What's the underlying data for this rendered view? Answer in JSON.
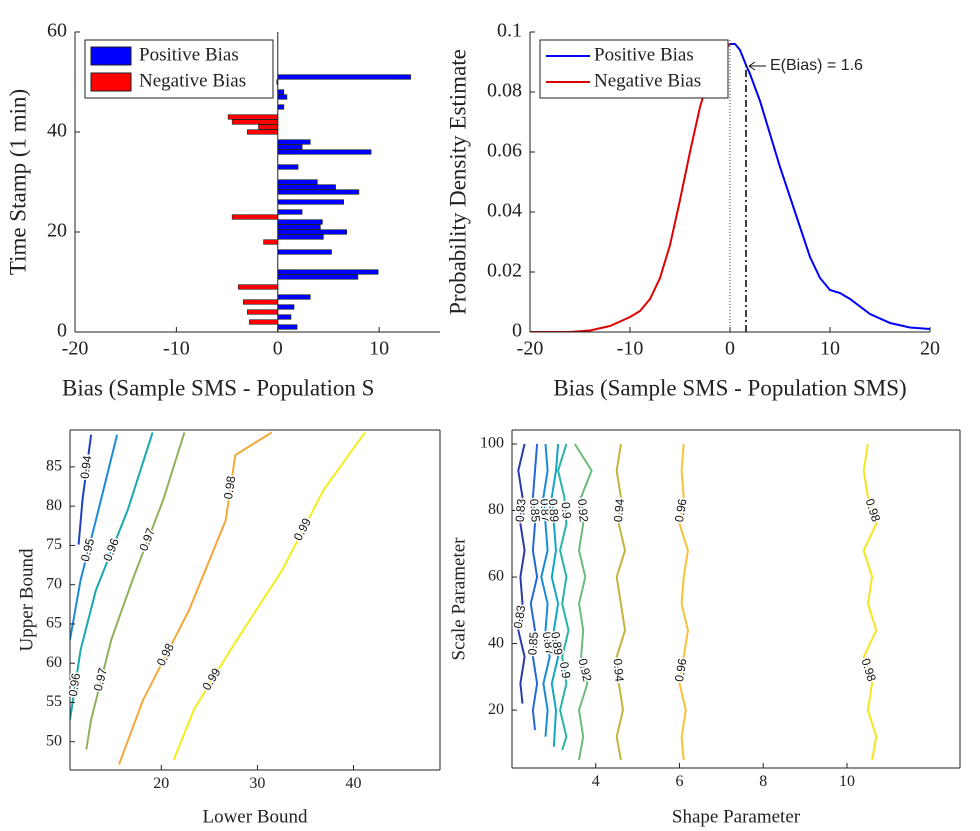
{
  "chart_data": [
    {
      "type": "barh",
      "xlabel": "Bias (Sample SMS - Population S",
      "ylabel": "Time Stamp (1 min)",
      "xlim": [
        -20,
        16
      ],
      "xticks": [
        -20,
        -10,
        0,
        10
      ],
      "ylim": [
        0,
        60
      ],
      "yticks": [
        0,
        20,
        40,
        60
      ],
      "legend": "upper left",
      "series": [
        {
          "name": "Positive Bias",
          "color": "#0000ff",
          "y": [
            1,
            3,
            5,
            7,
            11,
            12,
            16,
            19,
            20,
            21,
            22,
            24,
            26,
            28,
            29,
            30,
            33,
            36,
            37,
            38,
            45,
            47,
            48,
            51
          ],
          "values": [
            1.9,
            1.3,
            1.6,
            3.2,
            7.9,
            9.9,
            5.3,
            4.5,
            6.8,
            4.2,
            4.4,
            2.4,
            6.5,
            8.0,
            5.7,
            3.9,
            2.0,
            9.2,
            2.4,
            3.2,
            0.6,
            0.9,
            0.6,
            13.1
          ]
        },
        {
          "name": "Negative Bias",
          "color": "#ff0000",
          "y": [
            2,
            4,
            6,
            9,
            18,
            23,
            40,
            41,
            42,
            43,
            50
          ],
          "values": [
            -2.8,
            -3.0,
            -3.4,
            -3.9,
            -1.4,
            -4.5,
            -3.0,
            -1.9,
            -4.5,
            -4.9,
            -0.1
          ]
        }
      ]
    },
    {
      "type": "line",
      "xlabel": "Bias (Sample SMS - Population SMS)",
      "ylabel": "Probability Density Estimate",
      "xlim": [
        -20,
        20
      ],
      "xticks": [
        -20,
        -10,
        0,
        10,
        20
      ],
      "ylim": [
        0,
        0.1
      ],
      "yticks": [
        0,
        0.02,
        0.04,
        0.06,
        0.08,
        0.1
      ],
      "legend": "upper left",
      "zero_line": 0,
      "mean_line": 1.6,
      "annotation": "E(Bias) = 1.6",
      "series": [
        {
          "name": "Positive Bias",
          "color": "#0000ff",
          "x": [
            0,
            0.5,
            1,
            1.6,
            2,
            3,
            4,
            5,
            6,
            7,
            8,
            9,
            10,
            11,
            12,
            14,
            16,
            18,
            20
          ],
          "values": [
            0.096,
            0.096,
            0.094,
            0.089,
            0.086,
            0.077,
            0.066,
            0.055,
            0.045,
            0.035,
            0.025,
            0.018,
            0.014,
            0.013,
            0.011,
            0.006,
            0.003,
            0.0015,
            0.001
          ]
        },
        {
          "name": "Negative Bias",
          "color": "#e00000",
          "x": [
            -20,
            -18,
            -16,
            -14,
            -12,
            -10,
            -9,
            -8,
            -7,
            -6,
            -5,
            -4,
            -3,
            -2,
            -1,
            0
          ],
          "values": [
            0,
            0,
            0,
            0.0005,
            0.002,
            0.005,
            0.007,
            0.011,
            0.018,
            0.029,
            0.044,
            0.06,
            0.075,
            0.086,
            0.093,
            0.096
          ]
        }
      ]
    },
    {
      "type": "contour",
      "xlabel": "Lower Bound",
      "ylabel": "Upper Bound",
      "xlim": [
        10.5,
        49
      ],
      "xticks": [
        20,
        30,
        40
      ],
      "ylim": [
        46.4,
        89.7
      ],
      "yticks": [
        50,
        55,
        60,
        65,
        70,
        75,
        80,
        85
      ],
      "contours": [
        {
          "name": 0.94,
          "color": "#2040c0",
          "x": [
            12.7,
            11.8,
            11.4
          ],
          "y": [
            89.1,
            80.8,
            75.1
          ]
        },
        {
          "name": 0.95,
          "color": "#1a8ad6",
          "x": [
            15.4,
            13.2,
            11.6,
            10.5
          ],
          "y": [
            89.1,
            78.2,
            70.6,
            63.0
          ]
        },
        {
          "name": 0.96,
          "color": "#17a8b0",
          "x": [
            19.1,
            16.5,
            13.2,
            11.6,
            10.5
          ],
          "y": [
            89.4,
            79.5,
            69.3,
            61.7,
            52.8
          ]
        },
        {
          "name": 0.97,
          "color": "#8fb25a",
          "x": [
            22.4,
            20.2,
            17.0,
            14.8,
            12.7,
            12.2
          ],
          "y": [
            89.4,
            80.8,
            70.6,
            63.0,
            52.8,
            49.0
          ]
        },
        {
          "name": 0.98,
          "color": "#f2a93a",
          "x": [
            31.5,
            27.7,
            26.7,
            22.9,
            18.1,
            15.6
          ],
          "y": [
            89.4,
            86.5,
            78.2,
            66.8,
            55.3,
            47.1
          ]
        },
        {
          "name": 0.99,
          "color": "#f4ee1c",
          "x": [
            41.2,
            36.9,
            32.6,
            27.2,
            23.4,
            21.3
          ],
          "y": [
            89.4,
            82.1,
            71.9,
            61.7,
            54.1,
            47.7
          ]
        }
      ]
    },
    {
      "type": "contour",
      "xlabel": "Shape Parameter",
      "ylabel": "Scale Parameter",
      "xlim": [
        2,
        12.7
      ],
      "xticks": [
        4,
        6,
        8,
        10
      ],
      "ylim": [
        2.6,
        104.2
      ],
      "yticks": [
        20,
        40,
        60,
        80,
        100
      ],
      "contours": [
        {
          "name": 0.83,
          "color": "#2a3aa8",
          "x": [
            2.25,
            2.2,
            2.3,
            2.15,
            2.25,
            2.2,
            2.3,
            2.2,
            2.25,
            2.15,
            2.3
          ],
          "y": [
            22,
            28,
            36,
            44,
            52,
            60,
            68,
            76,
            84,
            92,
            100
          ]
        },
        {
          "name": 0.85,
          "color": "#2268d8",
          "x": [
            2.55,
            2.5,
            2.6,
            2.5,
            2.55,
            2.45,
            2.6,
            2.5,
            2.55,
            2.5,
            2.55,
            2.6
          ],
          "y": [
            14,
            20,
            28,
            36,
            44,
            52,
            60,
            68,
            76,
            84,
            92,
            100
          ]
        },
        {
          "name": 0.87,
          "color": "#1a8ad8",
          "x": [
            2.8,
            2.85,
            2.75,
            2.9,
            2.8,
            2.85,
            2.7,
            2.85,
            2.8,
            2.75,
            2.85,
            2.8
          ],
          "y": [
            12,
            20,
            28,
            36,
            44,
            52,
            60,
            68,
            76,
            84,
            92,
            100
          ]
        },
        {
          "name": 0.89,
          "color": "#14a5c4",
          "x": [
            3.0,
            3.05,
            2.95,
            3.1,
            3.0,
            3.1,
            2.95,
            3.05,
            3.0,
            2.95,
            3.05,
            3.1
          ],
          "y": [
            9,
            20,
            28,
            36,
            44,
            52,
            60,
            68,
            76,
            84,
            92,
            100
          ]
        },
        {
          "name": 0.9,
          "color": "#26b3a8",
          "x": [
            3.2,
            3.3,
            3.15,
            3.3,
            3.2,
            3.35,
            3.2,
            3.3,
            3.15,
            3.3,
            3.25,
            3.1,
            3.3
          ],
          "y": [
            8,
            12,
            20,
            28,
            36,
            44,
            52,
            60,
            68,
            76,
            84,
            92,
            100
          ]
        },
        {
          "name": 0.92,
          "color": "#6cbb78",
          "x": [
            3.6,
            3.7,
            3.6,
            3.8,
            3.65,
            3.7,
            3.6,
            3.75,
            3.6,
            3.7,
            3.65,
            3.9,
            3.5
          ],
          "y": [
            5,
            12,
            20,
            28,
            36,
            44,
            52,
            60,
            68,
            76,
            84,
            92,
            100
          ]
        },
        {
          "name": 0.94,
          "color": "#c4b43c",
          "x": [
            4.6,
            4.5,
            4.65,
            4.55,
            4.5,
            4.7,
            4.6,
            4.5,
            4.7,
            4.55,
            4.6,
            4.5,
            4.6
          ],
          "y": [
            5,
            12,
            20,
            28,
            36,
            44,
            52,
            60,
            68,
            76,
            84,
            92,
            100
          ]
        },
        {
          "name": 0.96,
          "color": "#f7c23a",
          "x": [
            6.1,
            6.05,
            6.15,
            6.0,
            6.1,
            6.2,
            6.05,
            6.1,
            6.2,
            6.0,
            6.1,
            6.05,
            6.1
          ],
          "y": [
            5,
            12,
            20,
            28,
            36,
            44,
            52,
            60,
            68,
            76,
            84,
            92,
            100
          ]
        },
        {
          "name": 0.98,
          "color": "#f5e61f",
          "x": [
            10.6,
            10.7,
            10.5,
            10.6,
            10.4,
            10.7,
            10.5,
            10.6,
            10.4,
            10.7,
            10.5,
            10.4,
            10.5
          ],
          "y": [
            5,
            12,
            20,
            28,
            36,
            44,
            52,
            60,
            68,
            76,
            84,
            92,
            100
          ]
        }
      ]
    }
  ]
}
